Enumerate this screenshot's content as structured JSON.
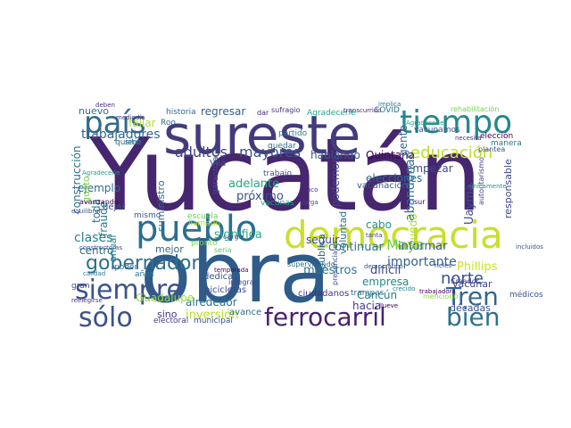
{
  "words": [
    {
      "text": "Yucatán",
      "color": "#46266e"
    },
    {
      "text": "obra",
      "color": "#2e5b8a"
    },
    {
      "text": "sureste",
      "color": "#433b7b"
    },
    {
      "text": "democracia",
      "color": "#c9df2a"
    },
    {
      "text": "pueblo",
      "color": "#2a6f8e"
    },
    {
      "text": "tiempo",
      "color": "#27878e"
    },
    {
      "text": "país",
      "color": "#2f6b8e"
    },
    {
      "text": "siempre",
      "color": "#3b538b"
    },
    {
      "text": "sólo",
      "color": "#3b528b"
    },
    {
      "text": "Tren",
      "color": "#31668e"
    },
    {
      "text": "bien",
      "color": "#2c728e"
    },
    {
      "text": "ferrocarril",
      "color": "#482173"
    },
    {
      "text": "gobernador",
      "color": "#2d708e"
    },
    {
      "text": "educación",
      "color": "#bddf26"
    },
    {
      "text": "adultos",
      "color": "#414487"
    },
    {
      "text": "mayores",
      "color": "#3a548c"
    },
    {
      "text": "trabajadores",
      "color": "#33638d"
    },
    {
      "text": "construcción",
      "color": "#2d708e"
    },
    {
      "text": "nuevo",
      "color": "#2c728e"
    },
    {
      "text": "fallar",
      "color": "#b5de2b"
    },
    {
      "text": "regresar",
      "color": "#35608d"
    },
    {
      "text": "hablando",
      "color": "#38588c"
    },
    {
      "text": "Quintana",
      "color": "#440154"
    },
    {
      "text": "empezar",
      "color": "#3e4989"
    },
    {
      "text": "gente",
      "color": "#34618d"
    },
    {
      "text": "responsable",
      "color": "#3e4989"
    },
    {
      "text": "elecciones",
      "color": "#31668e"
    },
    {
      "text": "abandonar",
      "color": "#2a768e"
    },
    {
      "text": "podemos",
      "color": "#3f4788"
    },
    {
      "text": "adelante",
      "color": "#22a884"
    },
    {
      "text": "próximo",
      "color": "#3b518b"
    },
    {
      "text": "ejemplo",
      "color": "#31678e"
    },
    {
      "text": "suministro",
      "color": "#2f6c8e"
    },
    {
      "text": "significa",
      "color": "#27ad81"
    },
    {
      "text": "clases",
      "color": "#25848e"
    },
    {
      "text": "centro",
      "color": "#2e6e8e"
    },
    {
      "text": "Maya",
      "color": "#6ece58"
    },
    {
      "text": "importante",
      "color": "#33628d"
    },
    {
      "text": "norte",
      "color": "#3b528b"
    },
    {
      "text": "Uayma",
      "color": "#3e4989"
    },
    {
      "text": "continuar",
      "color": "#2c718e"
    },
    {
      "text": "informar",
      "color": "#38598c"
    },
    {
      "text": "vacunar",
      "color": "#3f4788"
    },
    {
      "text": "maestros",
      "color": "#2b758e"
    },
    {
      "text": "difícil",
      "color": "#3e4a89"
    },
    {
      "text": "Phillips",
      "color": "#cde11d"
    },
    {
      "text": "empresa",
      "color": "#23898e"
    },
    {
      "text": "Cancún",
      "color": "#2a788e"
    },
    {
      "text": "hacia",
      "color": "#414487"
    },
    {
      "text": "décadas",
      "color": "#3b528b"
    },
    {
      "text": "alrededor",
      "color": "#2c728e"
    },
    {
      "text": "inversión",
      "color": "#b8de29"
    },
    {
      "text": "sino",
      "color": "#46327e"
    },
    {
      "text": "Guadalupe",
      "color": "#95d840"
    },
    {
      "text": "mejor",
      "color": "#33638d"
    },
    {
      "text": "fraude",
      "color": "#2a788e"
    },
    {
      "text": "anual",
      "color": "#25848e"
    },
    {
      "text": "toda",
      "color": "#2a788e"
    },
    {
      "text": "gusto",
      "color": "#7ad151"
    },
    {
      "text": "seguir",
      "color": "#3e4989"
    },
    {
      "text": "cabo",
      "color": "#21918c"
    },
    {
      "text": "voluntad",
      "color": "#2c728e"
    },
    {
      "text": "pública",
      "color": "#31688e"
    },
    {
      "text": "quedó",
      "color": "#addc30"
    },
    {
      "text": "historia",
      "color": "#2f6c8e"
    },
    {
      "text": "Roo",
      "color": "#31688e"
    },
    {
      "text": "dar",
      "color": "#482576"
    },
    {
      "text": "sufragio",
      "color": "#46307e"
    },
    {
      "text": "Agradecerle",
      "color": "#21a585"
    },
    {
      "text": "transcurrido",
      "color": "#481f70"
    },
    {
      "text": "partido",
      "color": "#287d8e"
    },
    {
      "text": "COVID",
      "color": "#2c728e"
    },
    {
      "text": "elección",
      "color": "#440154"
    },
    {
      "text": "vacunación",
      "color": "#38598c"
    },
    {
      "text": "trabajo",
      "color": "#3e4c8a"
    },
    {
      "text": "vacunas",
      "color": "#1fa088"
    },
    {
      "text": "mismo",
      "color": "#39568c"
    },
    {
      "text": "escuela",
      "color": "#6ccd5a"
    },
    {
      "text": "pronto",
      "color": "#7ad151"
    },
    {
      "text": "dedica",
      "color": "#3b518b"
    },
    {
      "text": "bicicletas",
      "color": "#3e4989"
    },
    {
      "text": "ciudadanos",
      "color": "#46337f"
    },
    {
      "text": "médicos",
      "color": "#3a538b"
    },
    {
      "text": "electoral",
      "color": "#433e85"
    },
    {
      "text": "municipal",
      "color": "#3b528b"
    },
    {
      "text": "avance",
      "color": "#2f6c8e"
    },
    {
      "text": "trampas",
      "color": "#2e6f8e"
    },
    {
      "text": "temporada",
      "color": "#440154"
    },
    {
      "text": "integrar",
      "color": "#404688"
    },
    {
      "text": "poder",
      "color": "#31688e"
    },
    {
      "text": "Vila",
      "color": "#3a548c"
    },
    {
      "text": "dejar",
      "color": "#3b528b"
    },
    {
      "text": "sitio",
      "color": "#2a788e"
    },
    {
      "text": "quiere",
      "color": "#2f6c8e"
    },
    {
      "text": "llamado",
      "color": "#b5de2b"
    },
    {
      "text": "quedar",
      "color": "#2c728e"
    },
    {
      "text": "garantizar",
      "color": "#3a548c"
    },
    {
      "text": "cinco",
      "color": "#482878"
    },
    {
      "text": "carga",
      "color": "#3e4a89"
    },
    {
      "text": "años",
      "color": "#2a788e"
    },
    {
      "text": "cargo",
      "color": "#3b528b"
    },
    {
      "text": "seria",
      "color": "#5ec962"
    },
    {
      "text": "sur",
      "color": "#440154"
    },
    {
      "text": "rieles",
      "color": "#3e4989"
    },
    {
      "text": "Creador",
      "color": "#414487"
    },
    {
      "text": "trabajadora",
      "color": "#440154"
    },
    {
      "text": "rehabilitación",
      "color": "#75d054"
    },
    {
      "text": "deben",
      "color": "#46327e"
    },
    {
      "text": "implica",
      "color": "#2c728e"
    },
    {
      "text": "Agradecerle",
      "color": "#21a585"
    },
    {
      "text": "vacunamos",
      "color": "#3b518b"
    },
    {
      "text": "manera",
      "color": "#2c728e"
    },
    {
      "text": "plantea",
      "color": "#3a548c"
    },
    {
      "text": "autoritarismo",
      "color": "#433e85"
    },
    {
      "text": "únicamente",
      "color": "#1f988b"
    },
    {
      "text": "necesita",
      "color": "#46337f"
    },
    {
      "text": "tanta",
      "color": "#3e4989"
    },
    {
      "text": "democrático",
      "color": "#3b528b"
    },
    {
      "text": "supervisando",
      "color": "#2f6c8e"
    },
    {
      "text": "presenciales",
      "color": "#3a548c"
    },
    {
      "text": "mencionó",
      "color": "#8bd646"
    },
    {
      "text": "incluidos",
      "color": "#39568c"
    },
    {
      "text": "crecido",
      "color": "#25848e"
    },
    {
      "text": "llueve",
      "color": "#440154"
    },
    {
      "text": "constructoras",
      "color": "#3e4a89"
    },
    {
      "text": "calidad",
      "color": "#2a788e"
    },
    {
      "text": "gran",
      "color": "#3e4989"
    },
    {
      "text": "reelegirse",
      "color": "#46327e"
    },
    {
      "text": "avanzando",
      "color": "#440154"
    },
    {
      "text": "equilibrar",
      "color": "#3b528b"
    },
    {
      "text": "mediodía",
      "color": "#46327e"
    },
    {
      "text": "Agradecerle",
      "color": "#1f988b"
    }
  ]
}
